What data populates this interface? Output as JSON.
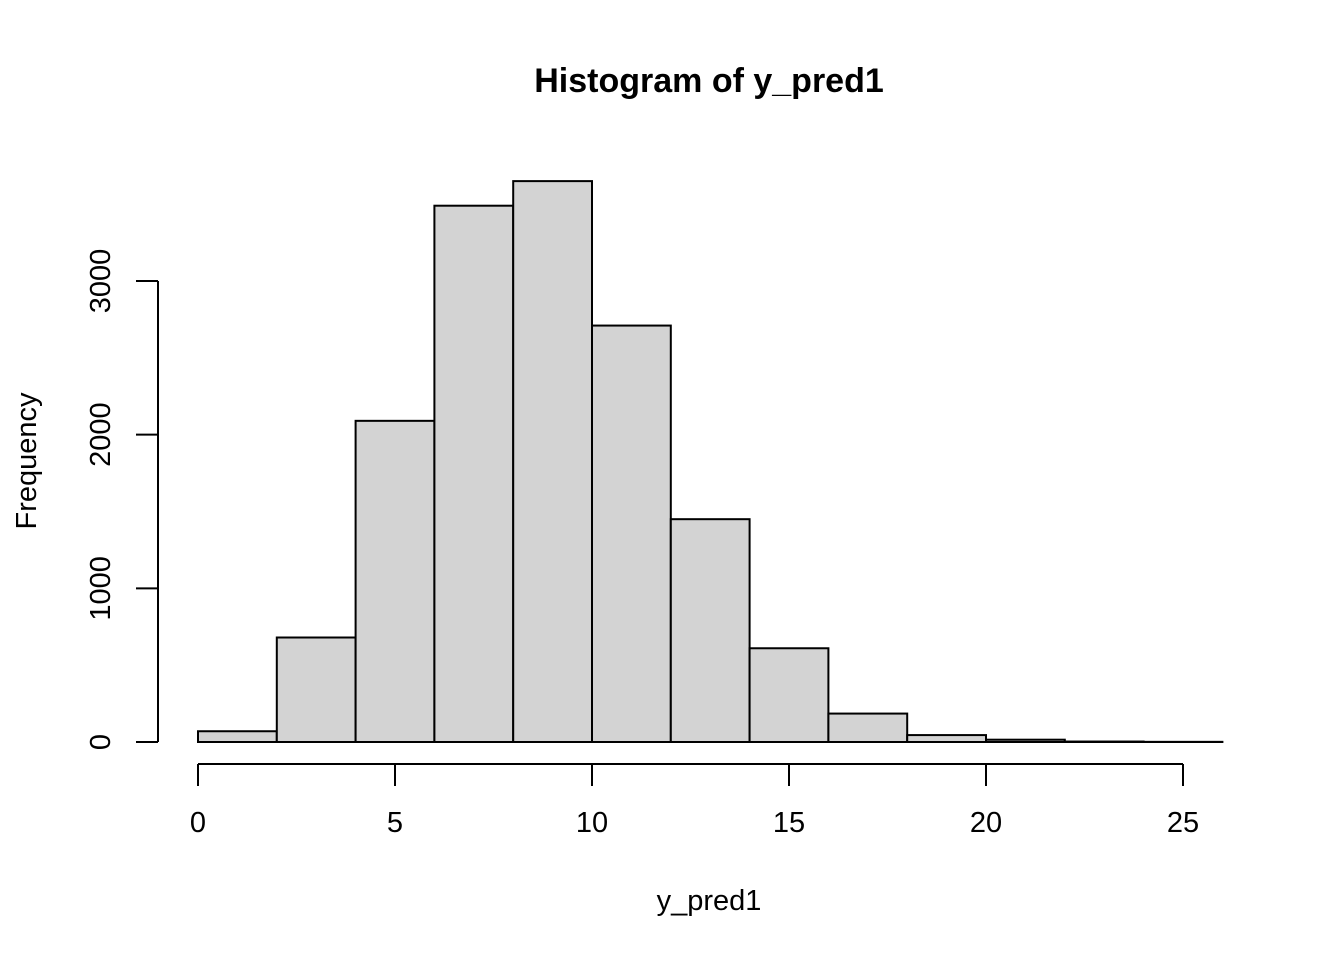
{
  "chart_data": {
    "type": "bar",
    "title": "Histogram of y_pred1",
    "xlabel": "y_pred1",
    "ylabel": "Frequency",
    "bins": [
      {
        "x0": 0,
        "x1": 2,
        "count": 70
      },
      {
        "x0": 2,
        "x1": 4,
        "count": 680
      },
      {
        "x0": 4,
        "x1": 6,
        "count": 2090
      },
      {
        "x0": 6,
        "x1": 8,
        "count": 3490
      },
      {
        "x0": 8,
        "x1": 10,
        "count": 3650
      },
      {
        "x0": 10,
        "x1": 12,
        "count": 2710
      },
      {
        "x0": 12,
        "x1": 14,
        "count": 1450
      },
      {
        "x0": 14,
        "x1": 16,
        "count": 610
      },
      {
        "x0": 16,
        "x1": 18,
        "count": 185
      },
      {
        "x0": 18,
        "x1": 20,
        "count": 45
      },
      {
        "x0": 20,
        "x1": 22,
        "count": 15
      },
      {
        "x0": 22,
        "x1": 24,
        "count": 3
      },
      {
        "x0": 24,
        "x1": 26,
        "count": 1
      }
    ],
    "xlim": [
      0,
      26
    ],
    "ylim": [
      0,
      3650
    ],
    "x_ticks": [
      0,
      5,
      10,
      15,
      20,
      25
    ],
    "x_tick_labels": [
      "0",
      "5",
      "10",
      "15",
      "20",
      "25"
    ],
    "y_ticks": [
      0,
      1000,
      2000,
      3000
    ],
    "y_tick_labels": [
      "0",
      "1000",
      "2000",
      "3000"
    ],
    "grid": false,
    "bar_fill": "#d3d3d3",
    "bar_stroke": "#000000"
  }
}
